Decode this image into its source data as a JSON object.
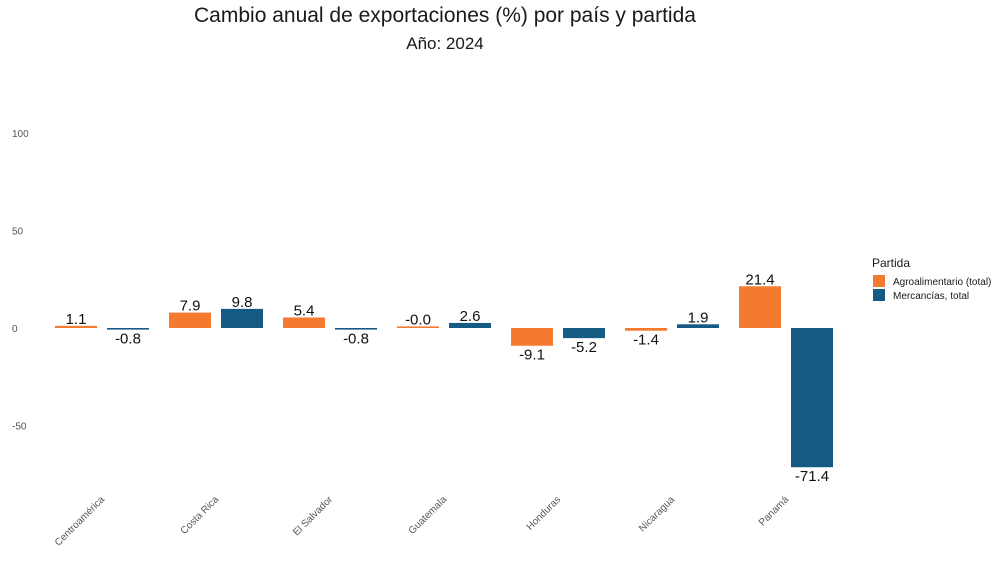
{
  "chart_data": {
    "type": "bar",
    "title": "Cambio anual de exportaciones (%) por país y partida",
    "subtitle": "Año: 2024",
    "xlabel": "",
    "ylabel": "",
    "ylim": [
      -80,
      110
    ],
    "yticks": [
      100,
      50,
      0,
      -50
    ],
    "grid": false,
    "categories": [
      "Centroamérica",
      "Costa Rica",
      "El Salvador",
      "Guatemala",
      "Honduras",
      "Nicaragua",
      "Panamá"
    ],
    "legend_title": "Partida",
    "legend_position": "right",
    "series": [
      {
        "name": "Agroalimentario (total)",
        "color": "#F47A30",
        "values": [
          1.1,
          7.9,
          5.4,
          -0.0,
          -9.1,
          -1.4,
          21.4
        ],
        "labels": [
          "1.1",
          "7.9",
          "5.4",
          "-0.0",
          "-9.1",
          "-1.4",
          "21.4"
        ]
      },
      {
        "name": "Mercancías, total",
        "color": "#155A82",
        "values": [
          -0.8,
          9.8,
          -0.8,
          2.6,
          -5.2,
          1.9,
          -71.4
        ],
        "labels": [
          "-0.8",
          "9.8",
          "-0.8",
          "2.6",
          "-5.2",
          "1.9",
          "-71.4"
        ]
      }
    ]
  }
}
